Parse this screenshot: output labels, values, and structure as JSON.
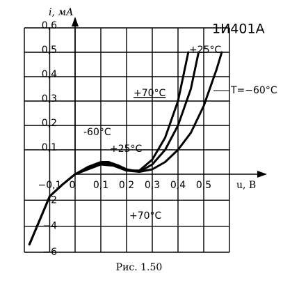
{
  "chart_data": {
    "type": "line",
    "title": "1И401А",
    "caption": "Рис. 1.50",
    "x_label": "u, B",
    "y_label": "i, мА",
    "xlim": [
      -0.2,
      0.6
    ],
    "ylim": [
      -6,
      0.6
    ],
    "xticks": [
      {
        "value": -0.1,
        "label": "−0,1"
      },
      0,
      {
        "value": 0.1,
        "label": "0,1"
      },
      {
        "value": 0.2,
        "label": "0,2"
      },
      {
        "value": 0.3,
        "label": "0,3"
      },
      {
        "value": 0.4,
        "label": "0,4"
      },
      {
        "value": 0.5,
        "label": "0,5"
      }
    ],
    "yticks": [
      {
        "value": -6,
        "label": "−6"
      },
      {
        "value": -4,
        "label": "−4"
      },
      {
        "value": -2,
        "label": "−2"
      },
      {
        "value": 0.1,
        "label": "0,1"
      },
      {
        "value": 0.2,
        "label": "0,2"
      },
      {
        "value": 0.3,
        "label": "0,3"
      },
      {
        "value": 0.4,
        "label": "0,4"
      },
      {
        "value": 0.5,
        "label": "0,5"
      },
      {
        "value": 0.6,
        "label": "0,6"
      }
    ],
    "grid": true,
    "series": [
      {
        "name": "T=−60°C",
        "color": "#000000",
        "x": [
          -0.18,
          -0.1,
          -0.05,
          0,
          0.05,
          0.1,
          0.13,
          0.17,
          0.2,
          0.25,
          0.3,
          0.35,
          0.4,
          0.45,
          0.5,
          0.55,
          0.57
        ],
        "values": [
          -5.4,
          -1.7,
          -0.8,
          0,
          0.03,
          0.05,
          0.05,
          0.035,
          0.02,
          0.01,
          0.02,
          0.05,
          0.1,
          0.17,
          0.28,
          0.43,
          0.5
        ]
      },
      {
        "name": "+25°C",
        "color": "#000000",
        "x": [
          -0.18,
          -0.1,
          -0.05,
          0,
          0.05,
          0.1,
          0.13,
          0.17,
          0.2,
          0.25,
          0.3,
          0.35,
          0.4,
          0.45,
          0.48
        ],
        "values": [
          -5.4,
          -1.7,
          -0.8,
          0,
          0.025,
          0.045,
          0.045,
          0.03,
          0.015,
          0.01,
          0.04,
          0.1,
          0.2,
          0.35,
          0.5
        ]
      },
      {
        "name": "+70°C",
        "color": "#000000",
        "x": [
          -0.18,
          -0.1,
          -0.05,
          0,
          0.05,
          0.1,
          0.15,
          0.2,
          0.25,
          0.3,
          0.35,
          0.4,
          0.44
        ],
        "values": [
          -5.4,
          -1.7,
          -0.8,
          0,
          0.02,
          0.04,
          0.035,
          0.015,
          0.015,
          0.06,
          0.15,
          0.3,
          0.5
        ]
      }
    ],
    "annotations": [
      "+25°C",
      "+70°C",
      "-60°C",
      "+25°C",
      "+70°C"
    ]
  }
}
